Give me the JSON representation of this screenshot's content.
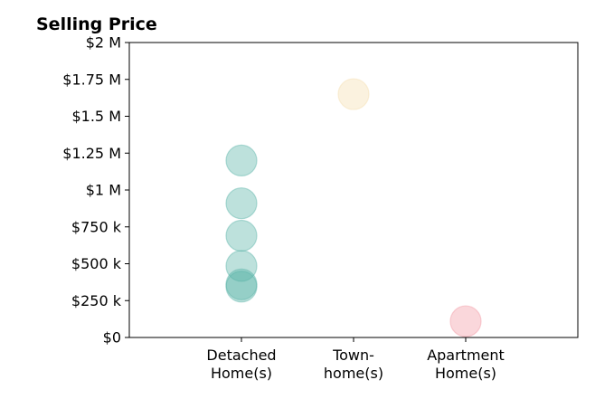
{
  "chart_data": {
    "type": "scatter",
    "title": "Selling Price",
    "xlabel": "",
    "ylabel": "",
    "categories": [
      "Detached\nHome(s)",
      "Town-\nhome(s)",
      "Apartment\nHome(s)"
    ],
    "ylim": [
      0,
      2000000
    ],
    "yticks": [
      0,
      250000,
      500000,
      750000,
      1000000,
      1250000,
      1500000,
      1750000,
      2000000
    ],
    "ytick_labels": [
      "$0",
      "$250 k",
      "$500 k",
      "$750 k",
      "$1 M",
      "$1.25 M",
      "$1.5 M",
      "$1.75 M",
      "$2 M"
    ],
    "grid": false,
    "series": [
      {
        "category": "Detached\nHome(s)",
        "color": "#5ab4a8",
        "values": [
          1200000,
          910000,
          690000,
          485000,
          360000,
          345000
        ]
      },
      {
        "category": "Town-\nhome(s)",
        "color": "#f5deb0",
        "values": [
          1650000
        ]
      },
      {
        "category": "Apartment\nHome(s)",
        "color": "#f29aa4",
        "values": [
          110000
        ]
      }
    ]
  }
}
